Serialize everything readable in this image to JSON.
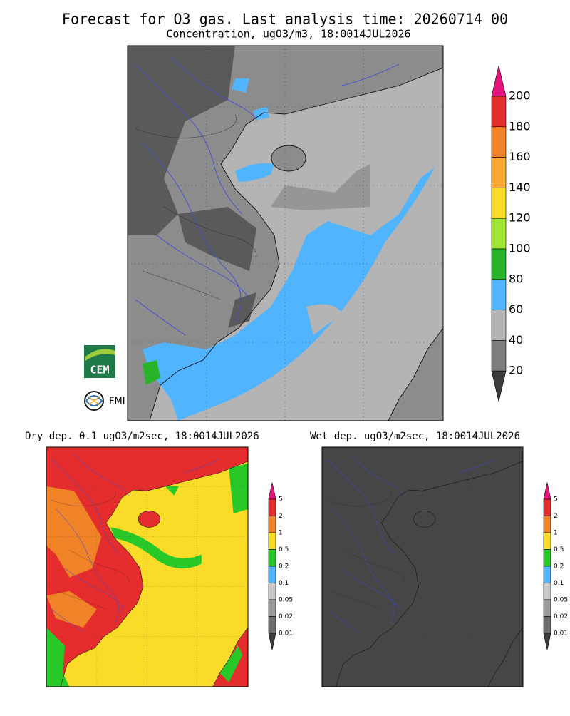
{
  "header": {
    "title": "Forecast for O3 gas. Last analysis time: 20260714 00",
    "subtitle": "Concentration, ugO3/m3, 18:0014JUL2026"
  },
  "main_colorbar": {
    "labels": [
      200,
      180,
      160,
      140,
      120,
      100,
      80,
      60,
      40,
      20
    ],
    "colors": [
      "#e6147d",
      "#e62d2d",
      "#f08228",
      "#faaa32",
      "#fadc28",
      "#a0e632",
      "#28b428",
      "#50b4ff",
      "#b4b4b4",
      "#7d7d7d",
      "#3c3c3c"
    ]
  },
  "logos": {
    "cem": "CEM",
    "fmi": "FMI"
  },
  "panels": [
    {
      "title": "Dry dep. 0.1 ugO3/m2sec, 18:0014JUL2026",
      "colorbar": {
        "labels": [
          5,
          2,
          1,
          0.5,
          0.2,
          0.1,
          0.05,
          0.02,
          0.01
        ],
        "colors": [
          "#e6147d",
          "#e62d2d",
          "#f08228",
          "#fadc28",
          "#28c828",
          "#50b4ff",
          "#c8c8c8",
          "#9b9b9b",
          "#6e6e6e",
          "#3c3c3c"
        ]
      }
    },
    {
      "title": "Wet dep. ugO3/m2sec, 18:0014JUL2026",
      "colorbar": {
        "labels": [
          5,
          2,
          1,
          0.5,
          0.2,
          0.1,
          0.05,
          0.02,
          0.01
        ],
        "colors": [
          "#e6147d",
          "#e62d2d",
          "#f08228",
          "#fadc28",
          "#28c828",
          "#50b4ff",
          "#c8c8c8",
          "#9b9b9b",
          "#6e6e6e",
          "#3c3c3c"
        ]
      }
    }
  ]
}
